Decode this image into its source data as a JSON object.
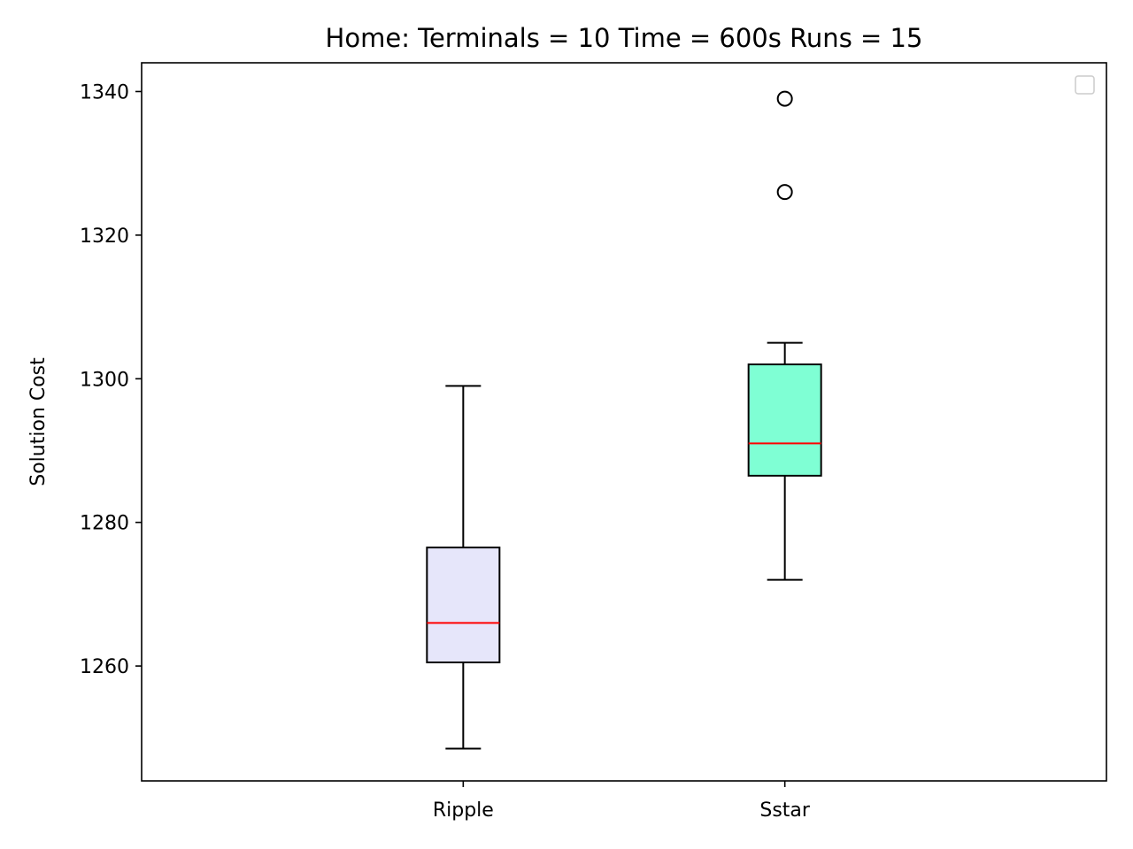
{
  "chart_data": {
    "type": "box",
    "title": "Home:  Terminals = 10  Time = 600s  Runs = 15",
    "ylabel": "Solution Cost",
    "xlabel": "",
    "ylim": [
      1244,
      1344
    ],
    "yticks": [
      1260,
      1280,
      1300,
      1320,
      1340
    ],
    "grid": false,
    "legend": {
      "placement": "top-right",
      "entries": []
    },
    "categories": [
      "Ripple",
      "Sstar"
    ],
    "boxes": [
      {
        "label": "Ripple",
        "whisker_low": 1248.5,
        "q1": 1260.5,
        "median": 1266,
        "q3": 1276.5,
        "whisker_high": 1299,
        "outliers": [],
        "fill": "#e6e6fa"
      },
      {
        "label": "Sstar",
        "whisker_low": 1272,
        "q1": 1286.5,
        "median": 1291,
        "q3": 1302,
        "whisker_high": 1305,
        "outliers": [
          1326,
          1339
        ],
        "fill": "#7fffd4"
      }
    ],
    "colors": {
      "median": "#ff0000",
      "edge": "#000000",
      "legend_border": "#cccccc"
    }
  }
}
